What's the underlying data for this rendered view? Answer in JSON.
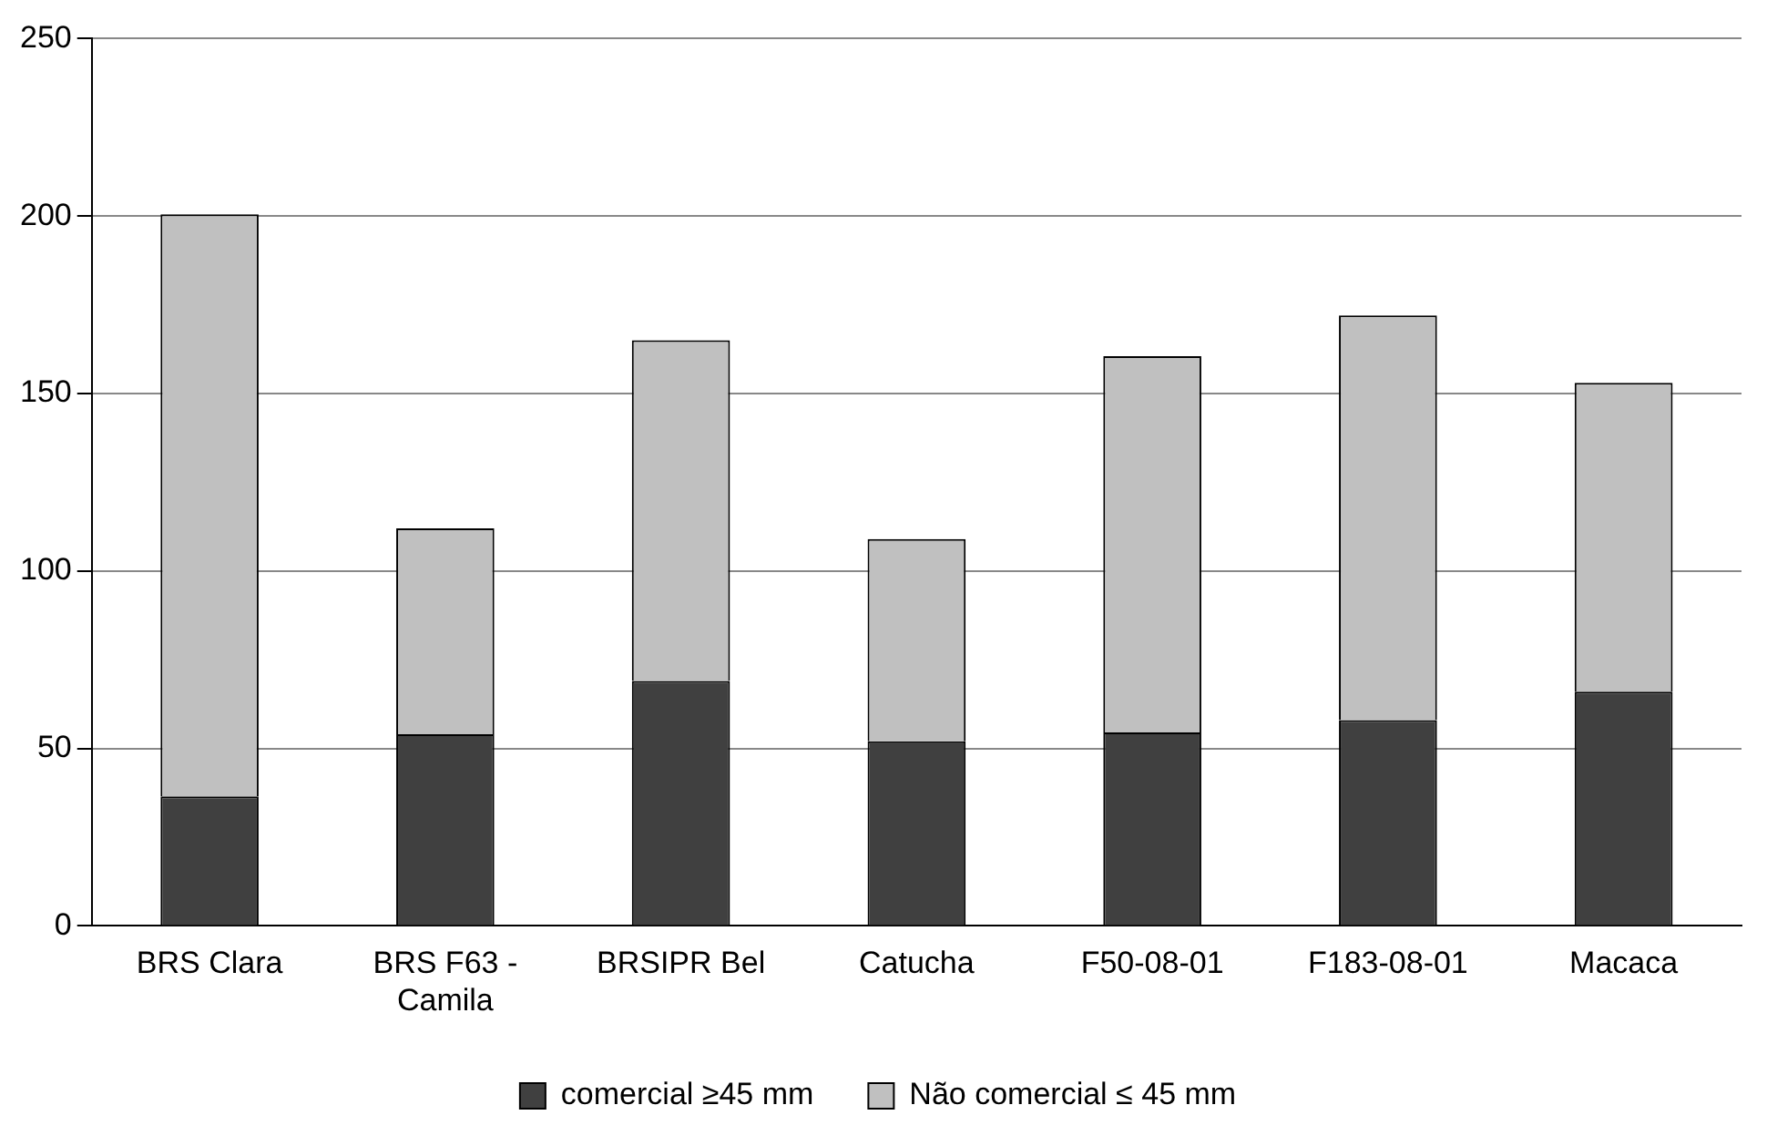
{
  "chart_data": {
    "type": "bar",
    "stacked": true,
    "categories": [
      "BRS Clara",
      "BRS F63 - Camila",
      "BRSIPR Bel",
      "Catucha",
      "F50-08-01",
      "F183-08-01",
      "Macaca"
    ],
    "series": [
      {
        "name": "comercial ≥45 mm",
        "color": "#404040",
        "values": [
          36.5,
          54,
          69,
          52,
          54.5,
          58,
          66
        ]
      },
      {
        "name": "Não comercial ≤ 45 mm",
        "color": "#c0c0c0",
        "values": [
          164,
          58,
          96,
          57,
          106,
          114,
          87
        ]
      }
    ],
    "ylim": [
      0,
      250
    ],
    "yticks": [
      0,
      50,
      100,
      150,
      200,
      250
    ],
    "grid": "y",
    "legend": "bottom"
  }
}
